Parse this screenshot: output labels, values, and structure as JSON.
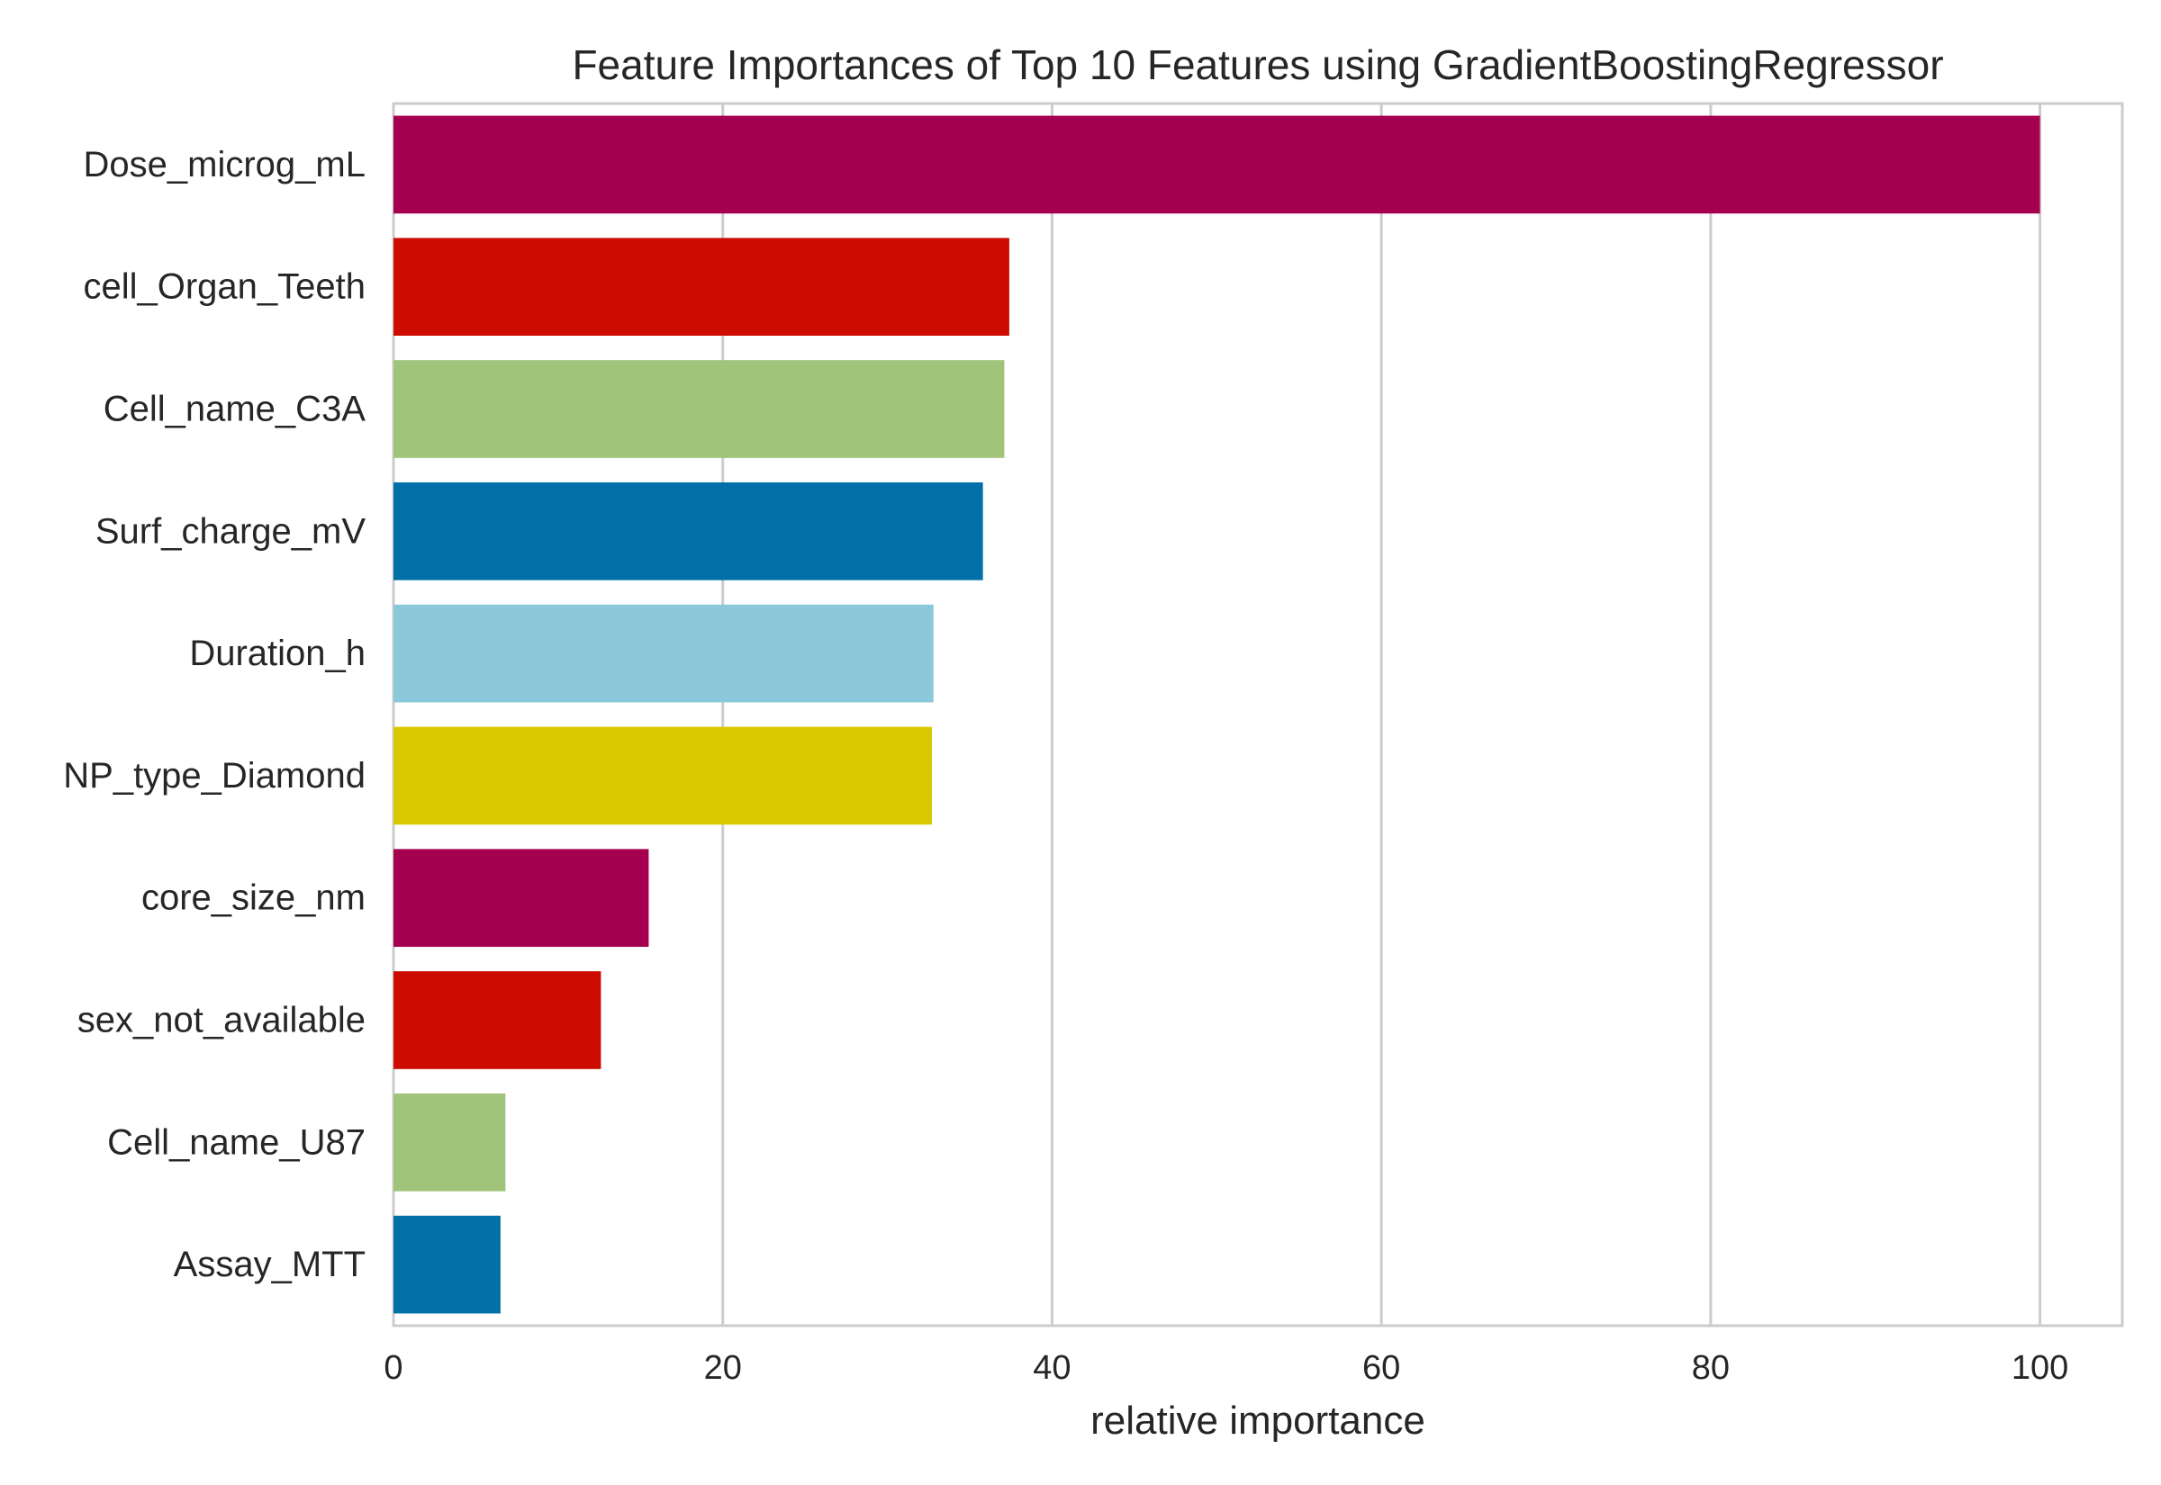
{
  "chart_data": {
    "type": "bar",
    "orientation": "horizontal",
    "title": "Feature Importances of Top 10 Features using GradientBoostingRegressor",
    "xlabel": "relative importance",
    "ylabel": "",
    "xlim": [
      0,
      105
    ],
    "xticks": [
      0,
      20,
      40,
      60,
      80,
      100
    ],
    "grid": "vertical",
    "categories": [
      "Dose_microg_mL",
      "cell_Organ_Teeth",
      "Cell_name_C3A",
      "Surf_charge_mV",
      "Duration_h",
      "NP_type_Diamond",
      "core_size_nm",
      "sex_not_available",
      "Cell_name_U87",
      "Assay_MTT"
    ],
    "values": [
      100,
      37.4,
      37.1,
      35.8,
      32.8,
      32.7,
      15.5,
      12.6,
      6.8,
      6.5
    ],
    "colors": [
      "#a50050",
      "#cc0c00",
      "#a0c47a",
      "#0070a6",
      "#8bc9da",
      "#d8c900",
      "#a50050",
      "#cc0c00",
      "#a0c47a",
      "#0070a6"
    ],
    "grid_color": "#cccccc",
    "frame_color": "#cccccc"
  }
}
